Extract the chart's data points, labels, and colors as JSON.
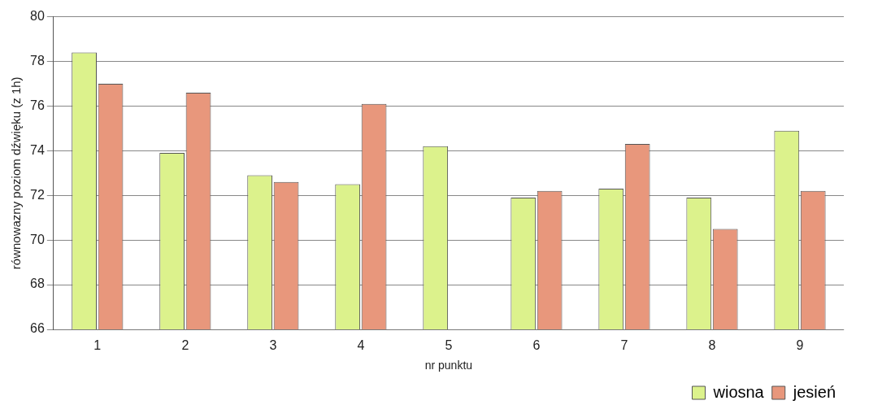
{
  "chart_data": {
    "type": "bar",
    "xlabel": "nr punktu",
    "ylabel": "równowazny poziom dźwięku (z 1h)",
    "categories": [
      "1",
      "2",
      "3",
      "4",
      "5",
      "6",
      "7",
      "8",
      "9"
    ],
    "series": [
      {
        "name": "wiosna",
        "color": "#dcf28c",
        "values": [
          78.4,
          73.9,
          72.9,
          72.5,
          74.2,
          71.9,
          72.3,
          71.9,
          74.9
        ]
      },
      {
        "name": "jesień",
        "color": "#e8977c",
        "values": [
          77.0,
          76.6,
          72.6,
          76.1,
          null,
          72.2,
          74.3,
          70.5,
          72.2
        ]
      }
    ],
    "ylim": [
      66,
      80
    ],
    "yticks": [
      66,
      68,
      70,
      72,
      74,
      76,
      78,
      80
    ],
    "grid": "y",
    "legend": "bottom right"
  }
}
